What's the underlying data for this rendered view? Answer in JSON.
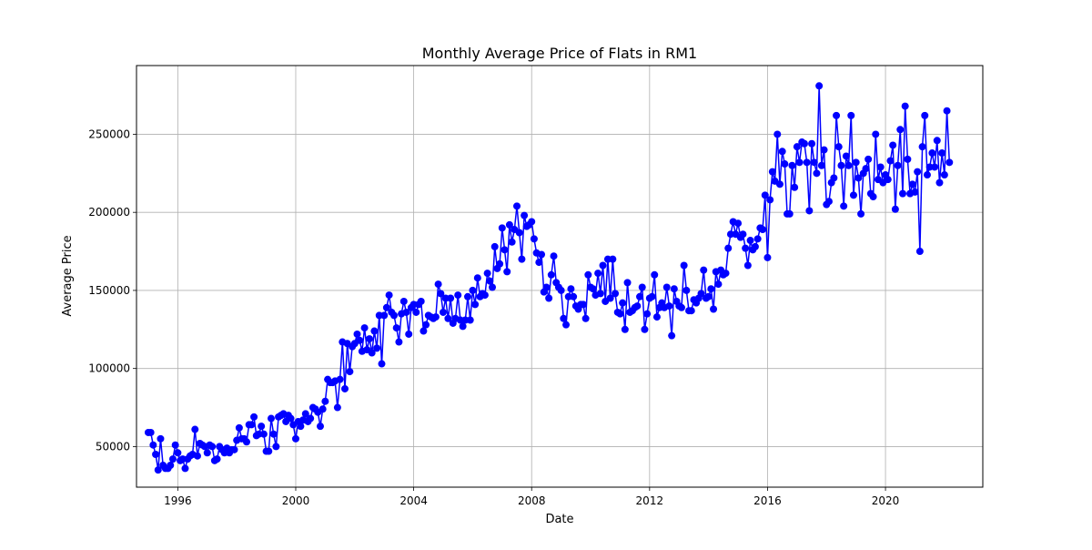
{
  "chart_data": {
    "type": "line",
    "title": "Monthly Average Price of Flats in RM1",
    "xlabel": "Date",
    "ylabel": "Average Price",
    "xlim": [
      1994.6,
      2023.3
    ],
    "ylim": [
      24000,
      294000
    ],
    "grid": true,
    "x_ticks": [
      1996,
      2000,
      2004,
      2008,
      2012,
      2016,
      2020
    ],
    "x_tick_labels": [
      "1996",
      "2000",
      "2004",
      "2008",
      "2012",
      "2016",
      "2020"
    ],
    "y_ticks": [
      50000,
      100000,
      150000,
      200000,
      250000
    ],
    "y_tick_labels": [
      "50000",
      "100000",
      "150000",
      "200000",
      "250000"
    ],
    "series": [
      {
        "color": "#0000ff",
        "marker": "circle",
        "start": "1995-01",
        "values": [
          59000,
          59000,
          51000,
          45000,
          35000,
          55000,
          38000,
          36000,
          36000,
          38000,
          42000,
          51000,
          46000,
          41000,
          42000,
          36000,
          42000,
          44000,
          45000,
          61000,
          44000,
          52000,
          51000,
          50000,
          46000,
          51000,
          50000,
          41000,
          42000,
          50000,
          48000,
          46000,
          49000,
          46000,
          48000,
          48000,
          54000,
          62000,
          55000,
          55000,
          53000,
          64000,
          64000,
          69000,
          57000,
          58000,
          63000,
          58000,
          47000,
          47000,
          68000,
          58000,
          50000,
          69000,
          70000,
          71000,
          66000,
          70000,
          68000,
          64000,
          55000,
          66000,
          63000,
          67000,
          71000,
          66000,
          68000,
          75000,
          74000,
          72000,
          63000,
          74000,
          79000,
          93000,
          91000,
          91000,
          92000,
          75000,
          93000,
          117000,
          87000,
          116000,
          98000,
          114000,
          116000,
          122000,
          118000,
          111000,
          126000,
          112000,
          119000,
          110000,
          124000,
          113000,
          134000,
          103000,
          134000,
          139000,
          147000,
          136000,
          134000,
          126000,
          117000,
          135000,
          143000,
          136000,
          122000,
          139000,
          141000,
          136000,
          141000,
          143000,
          124000,
          128000,
          134000,
          133000,
          132000,
          133000,
          154000,
          148000,
          136000,
          145000,
          132000,
          145000,
          129000,
          132000,
          147000,
          131000,
          127000,
          131000,
          146000,
          131000,
          150000,
          141000,
          158000,
          146000,
          148000,
          147000,
          161000,
          156000,
          152000,
          178000,
          164000,
          167000,
          190000,
          176000,
          162000,
          192000,
          181000,
          189000,
          204000,
          187000,
          170000,
          198000,
          191000,
          192000,
          194000,
          183000,
          174000,
          168000,
          173000,
          149000,
          152000,
          145000,
          160000,
          172000,
          155000,
          152000,
          150000,
          132000,
          128000,
          146000,
          151000,
          146000,
          140000,
          138000,
          141000,
          141000,
          132000,
          160000,
          152000,
          151000,
          147000,
          161000,
          148000,
          166000,
          143000,
          170000,
          145000,
          170000,
          148000,
          136000,
          135000,
          142000,
          125000,
          155000,
          136000,
          137000,
          139000,
          140000,
          146000,
          152000,
          125000,
          135000,
          145000,
          146000,
          160000,
          133000,
          139000,
          142000,
          139000,
          152000,
          140000,
          121000,
          151000,
          143000,
          140000,
          139000,
          166000,
          150000,
          137000,
          137000,
          144000,
          142000,
          145000,
          148000,
          163000,
          145000,
          146000,
          151000,
          138000,
          162000,
          154000,
          163000,
          160000,
          161000,
          177000,
          186000,
          194000,
          186000,
          193000,
          184000,
          186000,
          177000,
          166000,
          182000,
          176000,
          178000,
          183000,
          190000,
          189000,
          211000,
          171000,
          208000,
          226000,
          220000,
          250000,
          218000,
          239000,
          231000,
          199000,
          199000,
          230000,
          216000,
          242000,
          232000,
          245000,
          244000,
          232000,
          201000,
          244000,
          232000,
          225000,
          281000,
          230000,
          240000,
          205000,
          207000,
          219000,
          222000,
          262000,
          242000,
          230000,
          204000,
          236000,
          230000,
          262000,
          211000,
          232000,
          222000,
          199000,
          225000,
          228000,
          234000,
          212000,
          210000,
          250000,
          221000,
          229000,
          219000,
          224000,
          221000,
          233000,
          243000,
          202000,
          230000,
          253000,
          212000,
          268000,
          234000,
          212000,
          218000,
          213000,
          226000,
          175000,
          242000,
          262000,
          224000,
          229000,
          238000,
          229000,
          246000,
          219000,
          238000,
          224000,
          265000,
          232000
        ]
      }
    ]
  }
}
